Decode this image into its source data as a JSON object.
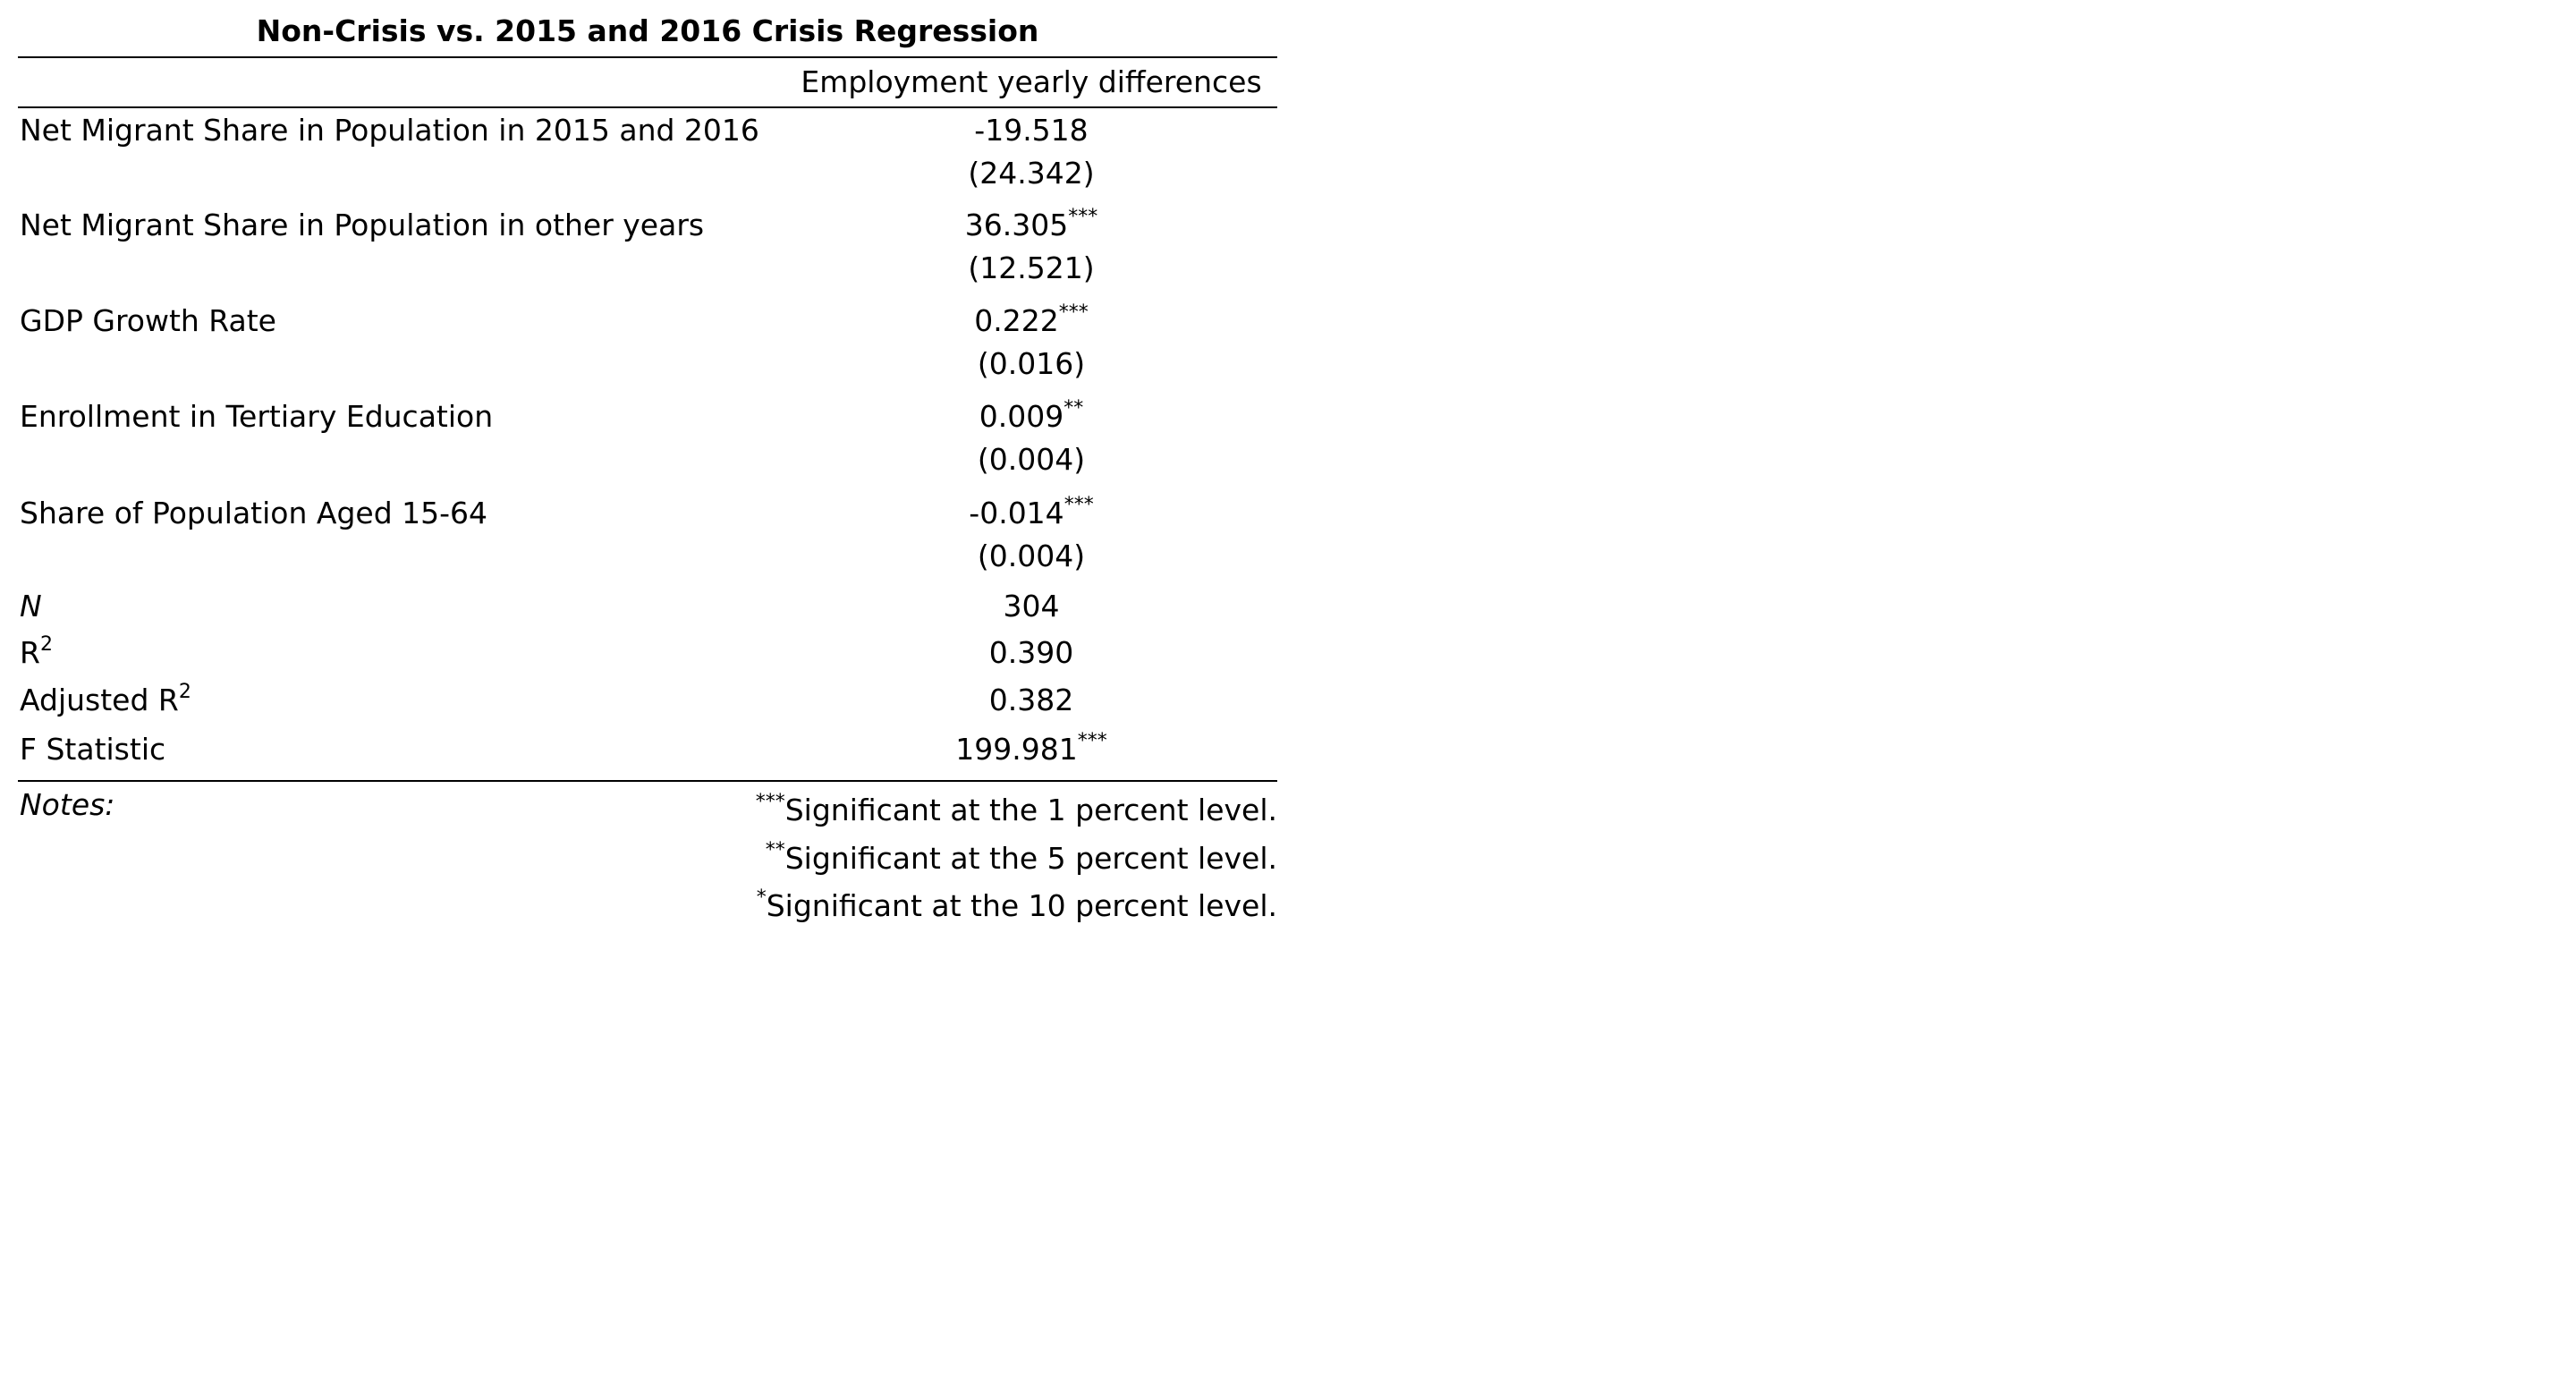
{
  "title": "Non-Crisis vs. 2015 and 2016 Crisis Regression",
  "column_header": "Employment yearly differences",
  "coefficients": [
    {
      "label": "Net Migrant Share in Population in 2015 and 2016",
      "value": "-19.518",
      "stars": "",
      "se": "(24.342)"
    },
    {
      "label": "Net Migrant Share in Population in other years",
      "value": "36.305",
      "stars": "***",
      "se": "(12.521)"
    },
    {
      "label": "GDP Growth Rate",
      "value": "0.222",
      "stars": "***",
      "se": "(0.016)"
    },
    {
      "label": "Enrollment in Tertiary Education",
      "value": "0.009",
      "stars": "**",
      "se": "(0.004)"
    },
    {
      "label": "Share of Population Aged 15-64",
      "value": "-0.014",
      "stars": "***",
      "se": "(0.004)"
    }
  ],
  "stats": {
    "n_label": "N",
    "n_value": "304",
    "r2_label": "R",
    "r2_sup": "2",
    "r2_value": "0.390",
    "adj_r2_label": "Adjusted R",
    "adj_r2_sup": "2",
    "adj_r2_value": "0.382",
    "f_label": "F Statistic",
    "f_value": "199.981",
    "f_stars": "***"
  },
  "notes": {
    "label": "Notes:",
    "items": [
      {
        "stars": "***",
        "text": "Significant at the 1 percent level."
      },
      {
        "stars": "**",
        "text": "Significant at the 5 percent level."
      },
      {
        "stars": "*",
        "text": "Significant at the 10 percent level."
      }
    ]
  }
}
